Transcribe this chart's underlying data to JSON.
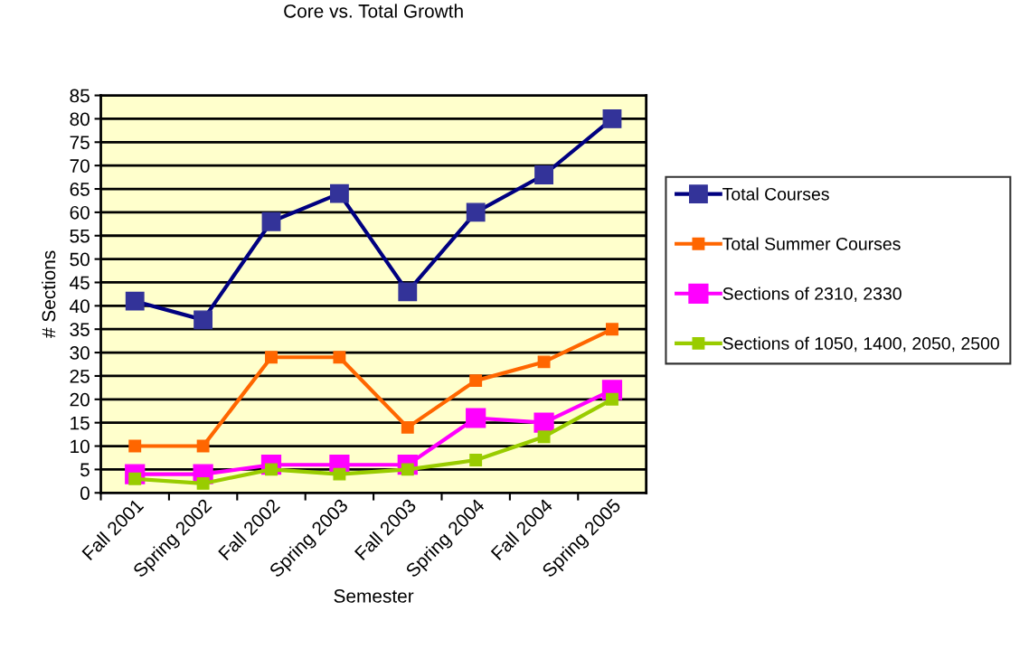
{
  "chart_data": {
    "type": "line",
    "title": "Core vs. Total Growth",
    "xlabel": "Semester",
    "ylabel": "# Sections",
    "categories": [
      "Fall 2001",
      "Spring 2002",
      "Fall 2002",
      "Spring 2003",
      "Fall 2003",
      "Spring 2004",
      "Fall 2004",
      "Spring 2005"
    ],
    "series": [
      {
        "name": "Total Courses",
        "color": "#000080",
        "values": [
          41,
          37,
          58,
          64,
          43,
          60,
          68,
          80
        ]
      },
      {
        "name": "Total Summer Courses",
        "color": "#ff6600",
        "values": [
          10,
          10,
          29,
          29,
          14,
          24,
          28,
          35
        ]
      },
      {
        "name": "Sections of 2310, 2330",
        "color": "#ff00ff",
        "values": [
          4,
          4,
          6,
          6,
          6,
          16,
          15,
          22
        ]
      },
      {
        "name": "Sections of 1050, 1400, 2050, 2500",
        "color": "#99cc00",
        "values": [
          3,
          2,
          5,
          4,
          5,
          7,
          12,
          20
        ]
      }
    ],
    "ylim": [
      0,
      85
    ],
    "yticks": [
      0,
      5,
      10,
      15,
      20,
      25,
      30,
      35,
      40,
      45,
      50,
      55,
      60,
      65,
      70,
      75,
      80,
      85
    ],
    "grid": "y",
    "legend": "right",
    "marker": "square",
    "line_style": "solid"
  }
}
